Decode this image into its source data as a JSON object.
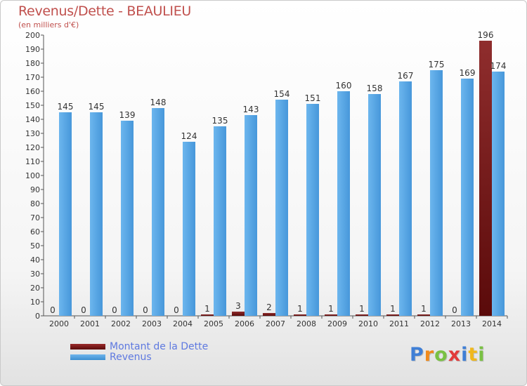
{
  "header": {
    "title": "Revenus/Dette - BEAULIEU",
    "subtitle": "(en milliers d'€)"
  },
  "legend": {
    "debt_label": "Montant de la Dette",
    "revenue_label": "Revenus"
  },
  "logo": {
    "text": "Proxiti"
  },
  "colors": {
    "debt": "#7b1c1c",
    "revenue": "#55a7e8",
    "title": "#c0504d",
    "legend_text": "#5e79e0"
  },
  "chart_data": {
    "type": "bar",
    "title": "Revenus/Dette - BEAULIEU",
    "subtitle": "(en milliers d'€)",
    "categories": [
      "2000",
      "2001",
      "2002",
      "2003",
      "2004",
      "2005",
      "2006",
      "2007",
      "2008",
      "2009",
      "2010",
      "2011",
      "2012",
      "2013",
      "2014"
    ],
    "series": [
      {
        "name": "Montant de la Dette",
        "values": [
          0,
          0,
          0,
          0,
          0,
          1,
          3,
          2,
          1,
          1,
          1,
          1,
          1,
          0,
          196
        ]
      },
      {
        "name": "Revenus",
        "values": [
          145,
          145,
          139,
          148,
          124,
          135,
          143,
          154,
          151,
          160,
          158,
          167,
          175,
          169,
          174
        ]
      }
    ],
    "ylim": [
      0,
      200
    ],
    "ytick_step": 10,
    "grid": false,
    "legend_position": "bottom-left"
  }
}
